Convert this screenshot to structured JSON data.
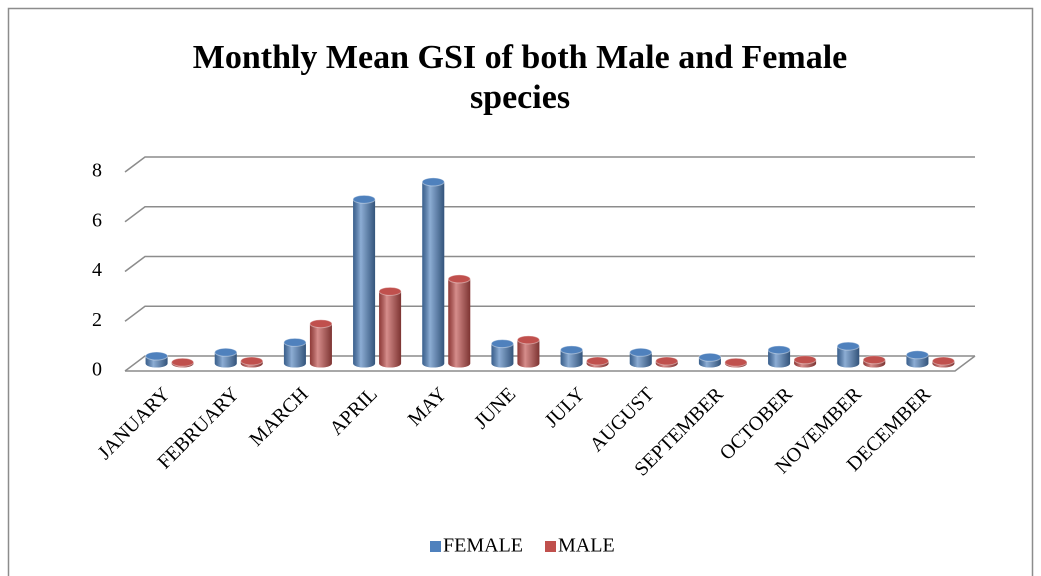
{
  "chart_data": {
    "type": "bar3d",
    "title": "Monthly Mean GSI of both Male and Female species",
    "categories": [
      "JANUARY",
      "FEBRUARY",
      "MARCH",
      "APRIL",
      "MAY",
      "JUNE",
      "JULY",
      "AUGUST",
      "SEPTEMBER",
      "OCTOBER",
      "NOVEMBER",
      "DECEMBER"
    ],
    "series": [
      {
        "name": "FEMALE",
        "color": "#4f81bd",
        "values": [
          0.3,
          0.45,
          0.85,
          6.6,
          7.3,
          0.8,
          0.55,
          0.45,
          0.25,
          0.55,
          0.7,
          0.35
        ]
      },
      {
        "name": "MALE",
        "color": "#c0504d",
        "values": [
          0.05,
          0.1,
          1.6,
          2.9,
          3.4,
          0.95,
          0.1,
          0.1,
          0.05,
          0.15,
          0.15,
          0.1
        ]
      }
    ],
    "ylim": [
      0,
      8
    ],
    "yticks": [
      0,
      2,
      4,
      6,
      8
    ],
    "grid": true,
    "legend": "bottom"
  }
}
